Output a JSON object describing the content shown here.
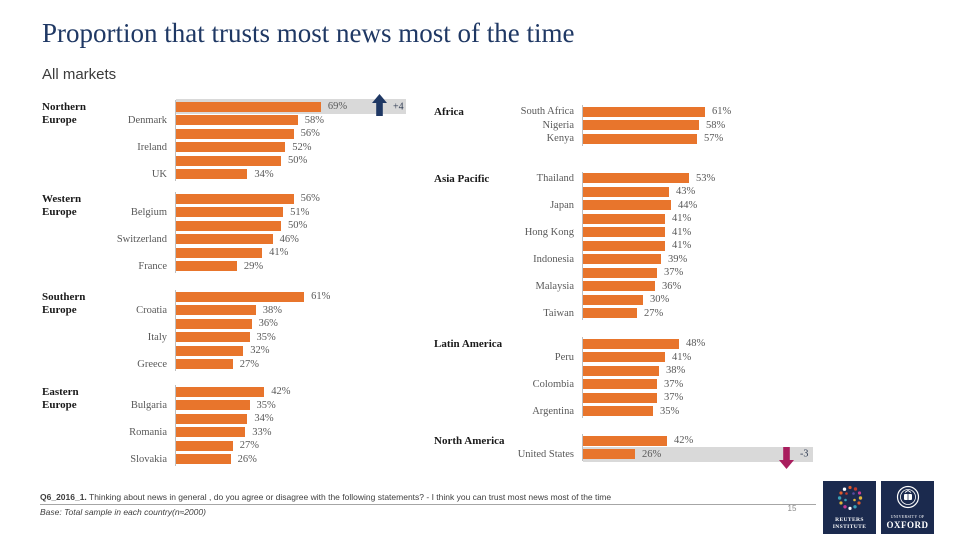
{
  "title": "Proportion that trusts most news most of the time",
  "subtitle": "All markets",
  "page_number": "15",
  "footer": {
    "code": "Q6_2016_1.",
    "question": " Thinking about news in general , do you agree or disagree with the following statements? - I think you can trust most news most of the time",
    "base": "Base: Total sample in each country(n≈2000)"
  },
  "logos": {
    "reuters": {
      "line1": "REUTERS",
      "line2": "INSTITUTE"
    },
    "oxford": {
      "line1": "UNIVERSITY OF",
      "line2": "OXFORD"
    }
  },
  "colors": {
    "bar": "#E8752C",
    "band": "#D9D9D9",
    "up_arrow": "#1F3864",
    "down_arrow": "#A91E5E",
    "title": "#1F3864"
  },
  "chart_data": {
    "type": "bar",
    "orientation": "horizontal",
    "unit": "%",
    "title": "Proportion that trusts most news most of the time",
    "subtitle": "All markets",
    "columns": [
      {
        "groups": [
          {
            "region": "Northern Europe",
            "rows": [
              {
                "label": "",
                "value": 69,
                "highlight": true,
                "delta": "+4",
                "delta_dir": "up"
              },
              {
                "label": "Denmark",
                "value": 58
              },
              {
                "label": "",
                "value": 56
              },
              {
                "label": "Ireland",
                "value": 52
              },
              {
                "label": "",
                "value": 50
              },
              {
                "label": "UK",
                "value": 34
              }
            ]
          },
          {
            "region": "Western Europe",
            "rows": [
              {
                "label": "",
                "value": 56
              },
              {
                "label": "Belgium",
                "value": 51
              },
              {
                "label": "",
                "value": 50
              },
              {
                "label": "Switzerland",
                "value": 46
              },
              {
                "label": "",
                "value": 41
              },
              {
                "label": "France",
                "value": 29
              }
            ]
          },
          {
            "region": "Southern Europe",
            "rows": [
              {
                "label": "",
                "value": 61
              },
              {
                "label": "Croatia",
                "value": 38
              },
              {
                "label": "",
                "value": 36
              },
              {
                "label": "Italy",
                "value": 35
              },
              {
                "label": "",
                "value": 32
              },
              {
                "label": "Greece",
                "value": 27
              }
            ]
          },
          {
            "region": "Eastern Europe",
            "rows": [
              {
                "label": "",
                "value": 42
              },
              {
                "label": "Bulgaria",
                "value": 35
              },
              {
                "label": "",
                "value": 34
              },
              {
                "label": "Romania",
                "value": 33
              },
              {
                "label": "",
                "value": 27
              },
              {
                "label": "Slovakia",
                "value": 26
              }
            ]
          }
        ]
      },
      {
        "groups": [
          {
            "region": "Africa",
            "rows": [
              {
                "label": "South Africa",
                "value": 61
              },
              {
                "label": "Nigeria",
                "value": 58
              },
              {
                "label": "Kenya",
                "value": 57
              }
            ]
          },
          {
            "region": "Asia Pacific",
            "rows": [
              {
                "label": "Thailand",
                "value": 53
              },
              {
                "label": "",
                "value": 43
              },
              {
                "label": "Japan",
                "value": 44
              },
              {
                "label": "",
                "value": 41
              },
              {
                "label": "Hong Kong",
                "value": 41
              },
              {
                "label": "",
                "value": 41
              },
              {
                "label": "Indonesia",
                "value": 39
              },
              {
                "label": "",
                "value": 37
              },
              {
                "label": "Malaysia",
                "value": 36
              },
              {
                "label": "",
                "value": 30
              },
              {
                "label": "Taiwan",
                "value": 27
              }
            ]
          },
          {
            "region": "Latin America",
            "rows": [
              {
                "label": "",
                "value": 48
              },
              {
                "label": "Peru",
                "value": 41
              },
              {
                "label": "",
                "value": 38
              },
              {
                "label": "Colombia",
                "value": 37
              },
              {
                "label": "",
                "value": 37
              },
              {
                "label": "Argentina",
                "value": 35
              }
            ]
          },
          {
            "region": "North America",
            "rows": [
              {
                "label": "",
                "value": 42
              },
              {
                "label": "United States",
                "value": 26,
                "highlight": true,
                "delta": "-3",
                "delta_dir": "down"
              }
            ]
          }
        ]
      }
    ]
  }
}
